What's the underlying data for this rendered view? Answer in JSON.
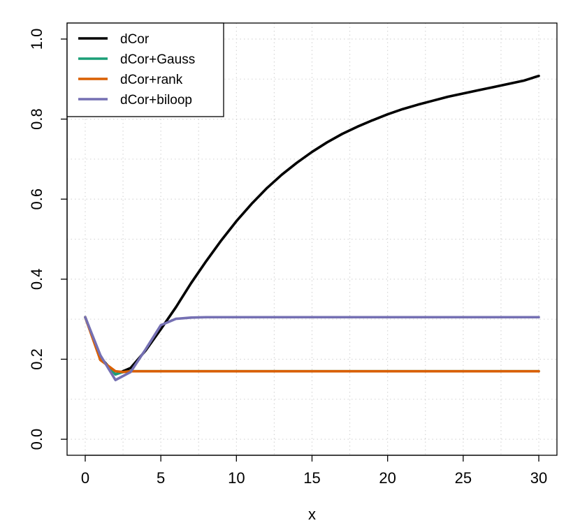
{
  "chart_data": {
    "type": "line",
    "title": "",
    "xlabel": "x",
    "ylabel": "",
    "xlim": [
      -1.2,
      31.2
    ],
    "ylim": [
      -0.04,
      1.04
    ],
    "x_ticks": [
      0,
      5,
      10,
      15,
      20,
      25,
      30
    ],
    "x_tick_labels": [
      "0",
      "5",
      "10",
      "15",
      "20",
      "25",
      "30"
    ],
    "y_ticks": [
      0.0,
      0.2,
      0.4,
      0.6,
      0.8,
      1.0
    ],
    "y_tick_labels": [
      "0.0",
      "0.2",
      "0.4",
      "0.6",
      "0.8",
      "1.0"
    ],
    "grid": true,
    "legend_position": "top-left",
    "series": [
      {
        "name": "dCor",
        "color": "#000000",
        "x": [
          0,
          1,
          2,
          3,
          4,
          5,
          6,
          7,
          8,
          9,
          10,
          11,
          12,
          13,
          14,
          15,
          16,
          17,
          18,
          19,
          20,
          21,
          22,
          23,
          24,
          25,
          26,
          27,
          28,
          29,
          30
        ],
        "y": [
          0.305,
          0.205,
          0.162,
          0.178,
          0.222,
          0.275,
          0.33,
          0.39,
          0.445,
          0.497,
          0.545,
          0.588,
          0.627,
          0.661,
          0.691,
          0.718,
          0.742,
          0.763,
          0.781,
          0.797,
          0.812,
          0.825,
          0.836,
          0.846,
          0.856,
          0.864,
          0.872,
          0.88,
          0.888,
          0.896,
          0.908
        ]
      },
      {
        "name": "dCor+Gauss",
        "color": "#1b9e77",
        "x": [
          0,
          1,
          2,
          2.5,
          3,
          4,
          5,
          6,
          8,
          10,
          15,
          20,
          25,
          30
        ],
        "y": [
          0.305,
          0.203,
          0.162,
          0.168,
          0.17,
          0.17,
          0.17,
          0.17,
          0.17,
          0.17,
          0.17,
          0.17,
          0.17,
          0.17
        ]
      },
      {
        "name": "dCor+rank",
        "color": "#d95f02",
        "x": [
          0,
          1,
          2,
          2.5,
          3,
          4,
          5,
          6,
          8,
          10,
          15,
          20,
          25,
          30
        ],
        "y": [
          0.305,
          0.198,
          0.17,
          0.168,
          0.17,
          0.17,
          0.17,
          0.17,
          0.17,
          0.17,
          0.17,
          0.17,
          0.17,
          0.17
        ]
      },
      {
        "name": "dCor+biloop",
        "color": "#7570b3",
        "x": [
          0,
          1,
          2,
          3,
          4,
          5,
          6,
          7,
          8,
          10,
          15,
          20,
          25,
          30
        ],
        "y": [
          0.305,
          0.21,
          0.148,
          0.168,
          0.225,
          0.285,
          0.301,
          0.304,
          0.305,
          0.305,
          0.305,
          0.305,
          0.305,
          0.305
        ]
      }
    ]
  }
}
